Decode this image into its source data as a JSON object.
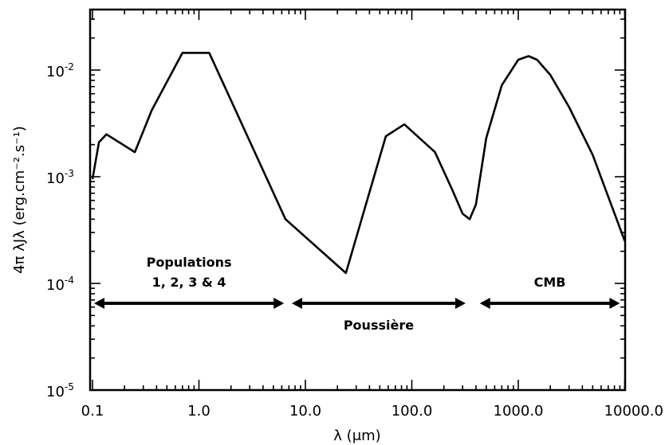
{
  "chart_data": {
    "type": "line",
    "xlabel": "λ (μm)",
    "ylabel": "4π λJλ (erg.cm⁻².s⁻¹)",
    "xscale": "log",
    "yscale": "log",
    "xlim": [
      0.1,
      10000
    ],
    "ylim": [
      1e-05,
      0.04
    ],
    "grid": false,
    "x_tick_labels": [
      "0.1",
      "1.0",
      "10.0",
      "100.0",
      "1000.0",
      "10000.0"
    ],
    "x_tick_values": [
      0.1,
      1,
      10,
      100,
      1000,
      10000
    ],
    "y_tick_values": [
      1e-05,
      0.0001,
      0.001,
      0.01
    ],
    "y_tick_exponents": [
      "-5",
      "-4",
      "-3",
      "-2"
    ],
    "y_tick_base": "10",
    "series": [
      {
        "x": [
          0.1,
          0.115,
          0.135,
          0.25,
          0.36,
          0.7,
          1.25,
          6.5,
          24,
          57,
          85,
          165,
          240,
          300,
          350,
          400,
          500,
          700,
          1000,
          1250,
          1500,
          2000,
          3000,
          5000,
          10000
        ],
        "y": [
          0.00095,
          0.0021,
          0.0025,
          0.0017,
          0.0042,
          0.0145,
          0.0145,
          0.0004,
          0.000125,
          0.0024,
          0.0031,
          0.0017,
          0.00075,
          0.00045,
          0.0004,
          0.00055,
          0.0023,
          0.0072,
          0.0125,
          0.0135,
          0.0125,
          0.009,
          0.0045,
          0.0016,
          0.00025
        ]
      }
    ],
    "annotations": [
      {
        "lines": [
          "Populations",
          "1, 2, 3 & 4"
        ],
        "x_range": [
          0.1,
          6.3
        ]
      },
      {
        "lines": [
          "Poussière"
        ],
        "x_range": [
          7.2,
          320
        ]
      },
      {
        "lines": [
          "CMB"
        ],
        "x_range": [
          420,
          9000
        ]
      }
    ]
  }
}
